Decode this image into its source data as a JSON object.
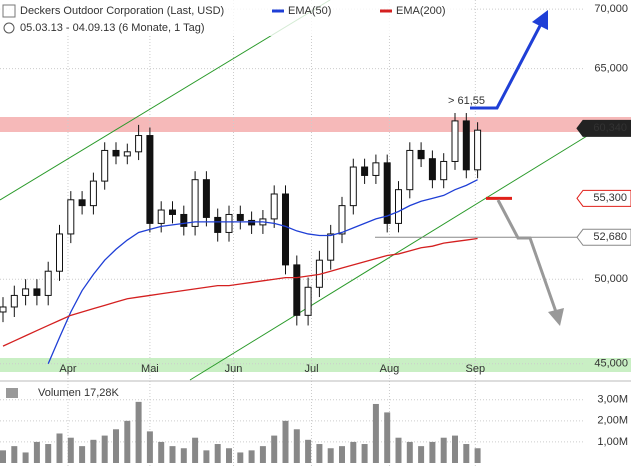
{
  "chart_data": [
    {
      "type": "candlestick",
      "title": "Deckers Outdoor Corporation (Last, USD)",
      "subtitle": "05.03.13 - 04.09.13 (6 Monate, 1 Tag)",
      "open": [
        48.0,
        48.3,
        49.0,
        49.4,
        49.0,
        50.5,
        52.9,
        55.2,
        54.8,
        56.5,
        58.7,
        58.3,
        58.6,
        59.8,
        53.6,
        54.5,
        54.2,
        53.4,
        56.6,
        54.0,
        53.0,
        54.2,
        53.8,
        53.5,
        53.9,
        55.6,
        50.9,
        47.8,
        49.5,
        51.2,
        52.9,
        54.8,
        57.5,
        56.9,
        57.8,
        53.6,
        55.9,
        58.7,
        58.1,
        56.6,
        57.9,
        60.9,
        57.3
      ],
      "high": [
        48.9,
        49.6,
        50.0,
        50.0,
        51.1,
        53.5,
        55.8,
        55.8,
        57.1,
        59.3,
        59.3,
        59.2,
        60.6,
        60.4,
        55.1,
        55.1,
        54.8,
        57.2,
        57.2,
        54.6,
        54.8,
        54.8,
        54.4,
        54.5,
        56.2,
        56.2,
        51.5,
        50.1,
        51.8,
        53.5,
        55.4,
        58.1,
        58.1,
        58.4,
        58.4,
        56.5,
        59.3,
        59.3,
        58.7,
        58.5,
        61.5,
        61.5,
        60.8
      ],
      "low": [
        47.4,
        47.7,
        48.4,
        48.4,
        48.4,
        49.9,
        52.3,
        54.2,
        54.2,
        55.9,
        57.7,
        57.7,
        58.0,
        53.0,
        53.0,
        53.6,
        52.8,
        52.8,
        53.4,
        52.4,
        52.4,
        53.2,
        52.9,
        52.9,
        53.3,
        50.3,
        47.2,
        47.2,
        48.9,
        50.6,
        52.3,
        54.2,
        56.3,
        56.3,
        53.0,
        53.0,
        55.3,
        57.5,
        56.0,
        56.0,
        57.3,
        56.7,
        56.7
      ],
      "close": [
        48.3,
        49.0,
        49.4,
        49.0,
        50.5,
        52.9,
        55.2,
        54.8,
        56.5,
        58.7,
        58.3,
        58.6,
        59.8,
        53.6,
        54.5,
        54.2,
        53.4,
        56.6,
        54.0,
        53.0,
        54.2,
        53.8,
        53.5,
        53.9,
        55.6,
        50.9,
        47.8,
        49.5,
        51.2,
        52.9,
        54.8,
        57.5,
        56.9,
        57.8,
        53.6,
        55.9,
        58.7,
        58.1,
        56.6,
        57.9,
        60.9,
        57.3,
        60.2
      ],
      "series": [
        {
          "name": "EMA(50)",
          "color": "#1f3fd6",
          "values": [
            null,
            null,
            null,
            null,
            45.0,
            46.5,
            48.0,
            49.3,
            50.3,
            51.2,
            51.9,
            52.5,
            53.0,
            53.2,
            53.4,
            53.5,
            53.6,
            53.7,
            53.7,
            53.7,
            53.7,
            53.7,
            53.7,
            53.7,
            53.6,
            53.4,
            53.1,
            52.9,
            52.8,
            52.8,
            53.0,
            53.3,
            53.6,
            53.9,
            54.1,
            54.4,
            54.8,
            55.1,
            55.3,
            55.5,
            55.9,
            56.2,
            56.6
          ]
        },
        {
          "name": "EMA(200)",
          "color": "#d42020",
          "values": [
            46.0,
            46.3,
            46.6,
            46.9,
            47.2,
            47.5,
            47.8,
            48.0,
            48.2,
            48.4,
            48.6,
            48.8,
            48.9,
            49.0,
            49.1,
            49.2,
            49.3,
            49.4,
            49.5,
            49.6,
            49.6,
            49.7,
            49.8,
            49.9,
            50.0,
            50.1,
            50.1,
            50.2,
            50.3,
            50.5,
            50.7,
            50.9,
            51.1,
            51.3,
            51.5,
            51.6,
            51.8,
            52.0,
            52.1,
            52.3,
            52.4,
            52.5,
            52.6
          ]
        }
      ],
      "log_scale": true,
      "ylim": [
        44.1,
        70.8
      ],
      "yticks": [
        {
          "value": 70,
          "label": "70,000"
        },
        {
          "value": 65,
          "label": "65,000"
        },
        {
          "value": 50,
          "label": "50,000"
        },
        {
          "value": 45,
          "label": "45,000"
        }
      ],
      "xticks": [
        {
          "value": 5.75,
          "label": "Apr"
        },
        {
          "value": 13.0,
          "label": "Mai"
        },
        {
          "value": 20.4,
          "label": "Jun"
        },
        {
          "value": 27.3,
          "label": "Jul"
        },
        {
          "value": 34.2,
          "label": "Aug"
        },
        {
          "value": 41.8,
          "label": "Sep"
        }
      ],
      "price_tags": [
        {
          "value": 60.34,
          "label": "60,340",
          "color": "#222222"
        },
        {
          "value": 55.3,
          "label": "55,300",
          "color": "#e0201a"
        },
        {
          "value": 52.68,
          "label": "52,680",
          "color": "#888888"
        }
      ],
      "annotation": "> 61,55"
    },
    {
      "type": "bar",
      "title": "Volumen",
      "subtitle": "17,28K",
      "color": "#888888",
      "values": [
        0.6,
        0.8,
        0.5,
        1.0,
        0.9,
        1.4,
        1.2,
        0.8,
        1.1,
        1.3,
        1.6,
        2.0,
        2.9,
        1.5,
        1.0,
        0.8,
        0.7,
        1.2,
        0.6,
        0.9,
        0.7,
        0.5,
        0.6,
        0.8,
        1.3,
        2.0,
        1.6,
        1.1,
        0.9,
        0.7,
        0.8,
        1.0,
        0.9,
        2.8,
        2.4,
        1.2,
        1.0,
        0.8,
        1.0,
        1.2,
        1.3,
        0.9,
        0.7
      ],
      "ylim": [
        0,
        3.7
      ],
      "yticks": [
        {
          "value": 3,
          "label": "3,00M"
        },
        {
          "value": 2,
          "label": "2,00M"
        },
        {
          "value": 1,
          "label": "1,00M"
        }
      ]
    }
  ]
}
